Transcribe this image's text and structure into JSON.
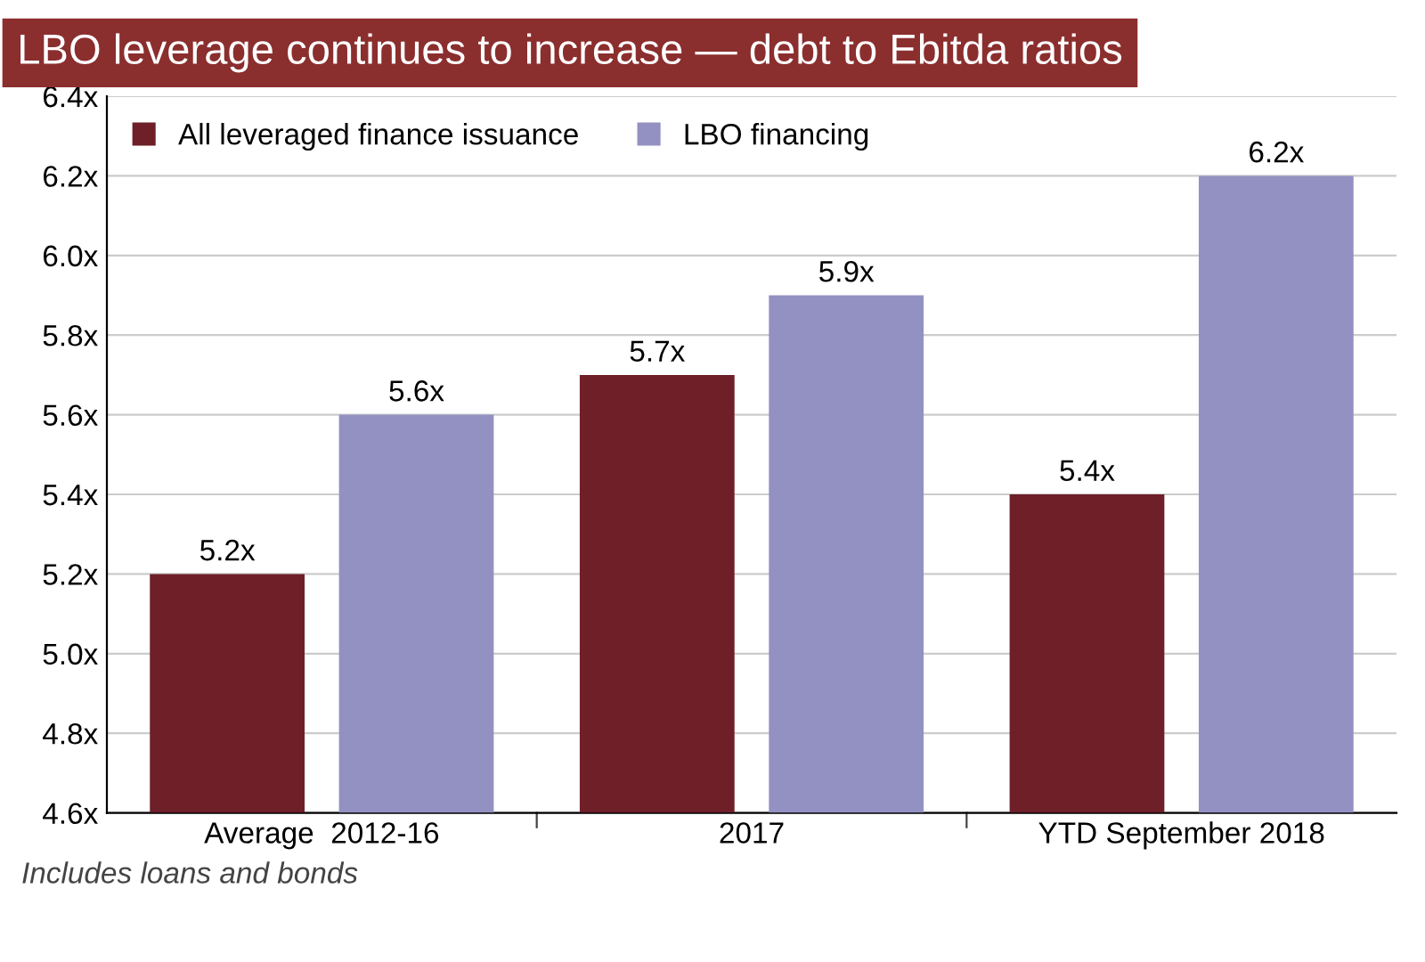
{
  "chart_data": {
    "type": "bar",
    "title": "LBO leverage continues to increase — debt to Ebitda ratios",
    "categories": [
      "Average  2012-16",
      "2017",
      "YTD September 2018"
    ],
    "series": [
      {
        "name": "All leveraged finance issuance",
        "color": "#6e1f28",
        "values": [
          5.2,
          5.7,
          5.4
        ],
        "value_labels": [
          "5.2x",
          "5.7x",
          "5.4x"
        ]
      },
      {
        "name": "LBO financing",
        "color": "#9391c1",
        "values": [
          5.6,
          5.9,
          6.2
        ],
        "value_labels": [
          "5.6x",
          "5.9x",
          "6.2x"
        ]
      }
    ],
    "ylim": [
      4.6,
      6.4
    ],
    "yticks": [
      {
        "value": 4.6,
        "label": "4.6x"
      },
      {
        "value": 4.8,
        "label": "4.8x"
      },
      {
        "value": 5.0,
        "label": "5.0x"
      },
      {
        "value": 5.2,
        "label": "5.2x"
      },
      {
        "value": 5.4,
        "label": "5.4x"
      },
      {
        "value": 5.6,
        "label": "5.6x"
      },
      {
        "value": 5.8,
        "label": "5.8x"
      },
      {
        "value": 6.0,
        "label": "6.0x"
      },
      {
        "value": 6.2,
        "label": "6.2x"
      },
      {
        "value": 6.4,
        "label": "6.4x"
      }
    ],
    "grid": "y",
    "legend": "top left",
    "annotations": [
      "Includes loans and bonds"
    ]
  }
}
